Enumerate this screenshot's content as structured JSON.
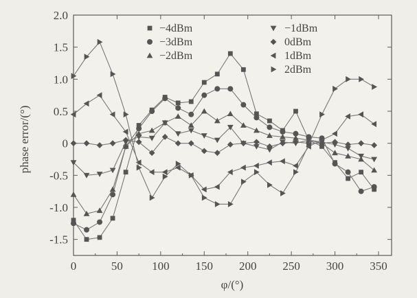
{
  "chart_data": {
    "type": "line",
    "title": "",
    "xlabel": "φ/(°)",
    "ylabel": "phase error/(°)",
    "xlim": [
      0,
      365
    ],
    "ylim": [
      -1.75,
      2.0
    ],
    "x_ticks": [
      0,
      50,
      100,
      150,
      200,
      250,
      300,
      350
    ],
    "y_ticks": [
      -1.5,
      -1.0,
      -0.5,
      0,
      0.5,
      1.0,
      1.5,
      2.0
    ],
    "x_tick_labels": [
      "0",
      "50",
      "100",
      "150",
      "200",
      "250",
      "300",
      "350"
    ],
    "y_tick_labels": [
      "-1.5",
      "-1.0",
      "-0.5",
      "0",
      "0.5",
      "1.0",
      "1.5",
      "2.0"
    ],
    "grid": false,
    "legend_placement": "top, two columns",
    "x": [
      0,
      15,
      30,
      45,
      60,
      75,
      90,
      105,
      120,
      135,
      150,
      165,
      180,
      195,
      210,
      225,
      240,
      255,
      270,
      285,
      300,
      315,
      330,
      345
    ],
    "series": [
      {
        "name": "-4dBm",
        "marker": "square",
        "values": [
          -1.2,
          -1.5,
          -1.47,
          -1.17,
          -0.45,
          0.28,
          0.52,
          0.72,
          0.63,
          0.65,
          0.95,
          1.08,
          1.4,
          1.15,
          0.46,
          0.35,
          0.2,
          0.5,
          0.05,
          -0.05,
          -0.3,
          -0.55,
          -0.45,
          -0.72
        ]
      },
      {
        "name": "-3dBm",
        "marker": "circle",
        "values": [
          -1.25,
          -1.35,
          -1.23,
          -0.8,
          -0.05,
          0.23,
          0.5,
          0.7,
          0.55,
          0.45,
          0.75,
          0.85,
          0.85,
          0.6,
          0.4,
          0.25,
          0.18,
          0.15,
          0.1,
          0.08,
          -0.32,
          -0.45,
          -0.75,
          -0.68
        ]
      },
      {
        "name": "-2dBm",
        "marker": "triangle-up",
        "values": [
          -0.8,
          -1.1,
          -1.05,
          -0.72,
          -0.05,
          0.15,
          0.2,
          0.32,
          0.42,
          0.28,
          0.5,
          0.35,
          0.46,
          0.28,
          0.2,
          0.12,
          0.1,
          0.08,
          0.05,
          0.0,
          -0.15,
          -0.2,
          -0.25,
          -0.42
        ]
      },
      {
        "name": "-1dBm",
        "marker": "triangle-down",
        "values": [
          -0.3,
          -0.5,
          -0.48,
          -0.42,
          0.02,
          0.1,
          0.08,
          0.32,
          0.15,
          0.2,
          0.12,
          0.05,
          0.25,
          0.0,
          -0.05,
          -0.1,
          0.02,
          0.0,
          0.05,
          0.02,
          -0.02,
          -0.08,
          -0.2,
          -0.25
        ]
      },
      {
        "name": "0dBm",
        "marker": "diamond",
        "values": [
          0.0,
          0.0,
          -0.03,
          0.0,
          0.05,
          0.02,
          -0.15,
          0.1,
          0.0,
          0.0,
          -0.12,
          -0.15,
          -0.02,
          0.0,
          0.02,
          -0.05,
          0.0,
          0.02,
          0.0,
          0.0,
          0.02,
          -0.02,
          0.0,
          -0.03
        ]
      },
      {
        "name": "1dBm",
        "marker": "triangle-left",
        "values": [
          0.45,
          0.62,
          0.75,
          0.45,
          0.18,
          -0.3,
          -0.45,
          -0.45,
          -0.38,
          -0.5,
          -0.72,
          -0.68,
          -0.45,
          -0.38,
          -0.35,
          -0.3,
          -0.28,
          -0.35,
          -0.05,
          0.05,
          0.15,
          0.42,
          0.45,
          0.3
        ]
      },
      {
        "name": "2dBm",
        "marker": "triangle-right",
        "values": [
          1.05,
          1.35,
          1.58,
          1.08,
          0.45,
          -0.38,
          -0.85,
          -0.52,
          -0.32,
          -0.5,
          -0.85,
          -0.95,
          -0.95,
          -0.6,
          -0.45,
          -0.65,
          -0.78,
          -0.45,
          -0.02,
          0.45,
          0.85,
          1.0,
          1.0,
          0.88
        ]
      }
    ]
  }
}
